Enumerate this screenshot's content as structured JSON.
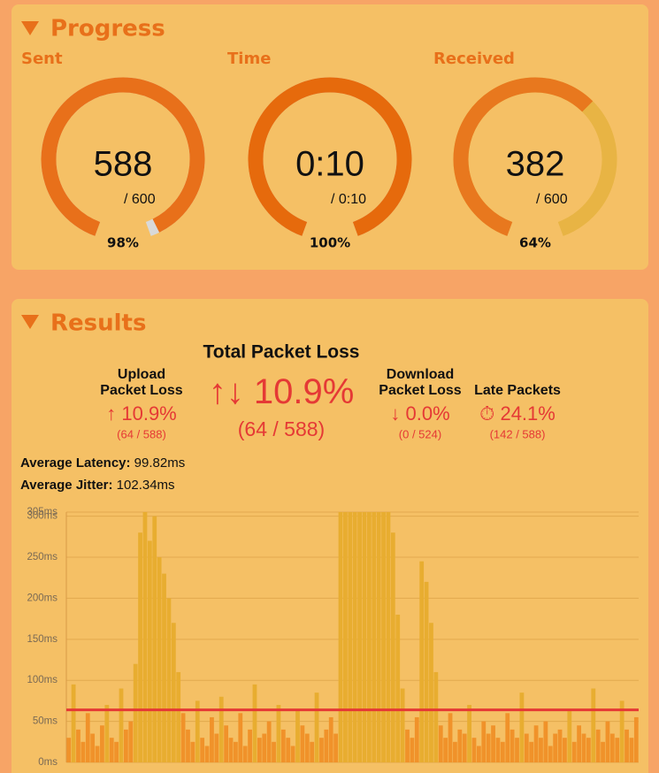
{
  "progress": {
    "title": "Progress",
    "gauges": [
      {
        "label": "Sent",
        "value": "588",
        "total": "/ 600",
        "percent": {
          "value": 98,
          "label": "98%"
        },
        "color": "#e8701a",
        "track": "#d9d9d9"
      },
      {
        "label": "Time",
        "value": "0:10",
        "total": "/ 0:10",
        "percent": {
          "value": 100,
          "label": "100%"
        },
        "color": "#e66a0c",
        "track": "#d9d9d9"
      },
      {
        "label": "Received",
        "value": "382",
        "total": "/ 600",
        "percent": {
          "value": 64,
          "label": "64%"
        },
        "color": "#e8781e",
        "track": "#e8b444"
      }
    ]
  },
  "results": {
    "title": "Results",
    "total": {
      "title": "Total Packet Loss",
      "icon": "↑↓",
      "value": "10.9%",
      "count": "(64 / 588)"
    },
    "stats": [
      {
        "title": [
          "Upload",
          "Packet Loss"
        ],
        "icon": "↑",
        "value": "10.9%",
        "count": "(64 / 588)"
      },
      {
        "title": [
          "Download",
          "Packet Loss"
        ],
        "icon": "↓",
        "value": "0.0%",
        "count": "(0 / 524)"
      },
      {
        "title": [
          "Late Packets"
        ],
        "icon": "⏱",
        "value": "24.1%",
        "count": "(142 / 588)"
      }
    ],
    "latency": {
      "label": "Average Latency:",
      "value": "99.82ms"
    },
    "jitter": {
      "label": "Average Jitter:",
      "value": "102.34ms"
    },
    "chart": {
      "type": "bar",
      "values": [
        30,
        95,
        40,
        25,
        60,
        35,
        20,
        45,
        70,
        30,
        25,
        90,
        40,
        50,
        120,
        280,
        305,
        270,
        300,
        250,
        230,
        200,
        170,
        110,
        60,
        40,
        25,
        75,
        30,
        20,
        55,
        35,
        80,
        45,
        30,
        25,
        60,
        20,
        40,
        95,
        30,
        35,
        50,
        25,
        70,
        40,
        30,
        20,
        65,
        45,
        35,
        25,
        85,
        30,
        40,
        55,
        35,
        305,
        305,
        305,
        305,
        305,
        305,
        305,
        305,
        305,
        305,
        305,
        280,
        180,
        90,
        40,
        30,
        55,
        245,
        220,
        170,
        110,
        45,
        30,
        60,
        25,
        40,
        35,
        70,
        30,
        20,
        50,
        35,
        45,
        30,
        25,
        60,
        40,
        30,
        85,
        35,
        25,
        45,
        30,
        50,
        20,
        35,
        40,
        30,
        65,
        25,
        45,
        35,
        30,
        90,
        40,
        25,
        50,
        35,
        30,
        75,
        40,
        30,
        55
      ],
      "ylim": [
        0,
        305
      ],
      "yticks": [
        {
          "value": 0,
          "label": "0ms"
        },
        {
          "value": 50,
          "label": "50ms"
        },
        {
          "value": 100,
          "label": "100ms"
        },
        {
          "value": 150,
          "label": "150ms"
        },
        {
          "value": 200,
          "label": "200ms"
        },
        {
          "value": 250,
          "label": "250ms"
        },
        {
          "value": 300,
          "label": "300ms"
        },
        {
          "value": 305,
          "label": "305ms"
        }
      ],
      "threshold": 64,
      "threshold_color": "#e53935",
      "colors": [
        "#f0922a",
        "#e8ad30"
      ],
      "grid": true
    }
  }
}
